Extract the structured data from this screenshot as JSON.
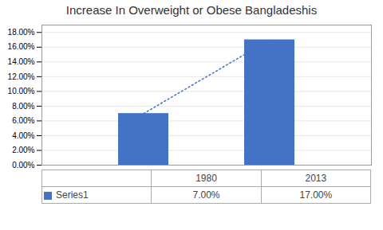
{
  "chart_data": {
    "type": "bar",
    "title": "Increase In Overweight or Obese Bangladeshis",
    "categories": [
      "1980",
      "2013"
    ],
    "series": [
      {
        "name": "Series1",
        "color": "#4472C4",
        "values": [
          0.07,
          0.17
        ],
        "value_labels": [
          "7.00%",
          "17.00%"
        ],
        "line_style": "dotted"
      }
    ],
    "ylim": [
      0,
      0.19
    ],
    "yticks": [
      {
        "value": 0.0,
        "label": "0.00%"
      },
      {
        "value": 0.02,
        "label": "2.00%"
      },
      {
        "value": 0.04,
        "label": "4.00%"
      },
      {
        "value": 0.06,
        "label": "6.00%"
      },
      {
        "value": 0.08,
        "label": "8.00%"
      },
      {
        "value": 0.1,
        "label": "10.00%"
      },
      {
        "value": 0.12,
        "label": "12.00%"
      },
      {
        "value": 0.14,
        "label": "14.00%"
      },
      {
        "value": 0.16,
        "label": "16.00%"
      },
      {
        "value": 0.18,
        "label": "18.00%"
      }
    ],
    "grid": true,
    "legend": "bottom",
    "data_labels": true,
    "tick_labels": "y"
  }
}
